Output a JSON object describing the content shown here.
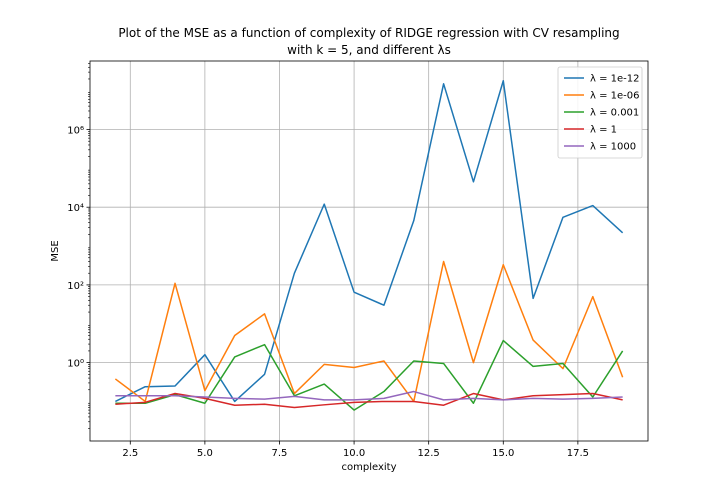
{
  "chart_data": {
    "type": "line",
    "title": "Plot of the MSE as a function of complexity of RIDGE regression with CV resampling",
    "subtitle": "with k = 5, and different λs",
    "xlabel": "complexity",
    "ylabel": "MSE",
    "xlim": [
      1.15,
      19.85
    ],
    "ylim": [
      0.0096,
      58000000
    ],
    "yscale": "log",
    "grid": true,
    "legend_position": "top-right",
    "x": [
      2,
      3,
      4,
      5,
      6,
      7,
      8,
      9,
      10,
      11,
      12,
      13,
      14,
      15,
      16,
      17,
      18,
      19
    ],
    "x_ticks": [
      2.5,
      5.0,
      7.5,
      10.0,
      12.5,
      15.0,
      17.5
    ],
    "x_tick_labels": [
      "2.5",
      "5.0",
      "7.5",
      "10.0",
      "12.5",
      "15.0",
      "17.5"
    ],
    "y_ticks": [
      1,
      100,
      10000,
      1000000
    ],
    "y_tick_labels": [
      "10⁰",
      "10²",
      "10⁴",
      "10⁶"
    ],
    "series": [
      {
        "name": "λ = 1e-12",
        "color": "#1f77b4",
        "values": [
          0.1,
          0.24,
          0.25,
          1.6,
          0.1,
          0.5,
          200,
          12000,
          65,
          30,
          4500,
          15000000,
          45000,
          18000000,
          45,
          5500,
          11000,
          2200
        ]
      },
      {
        "name": "λ = 1e-06",
        "color": "#ff7f0e",
        "values": [
          0.38,
          0.1,
          110,
          0.19,
          5,
          18,
          0.16,
          0.9,
          0.75,
          1.1,
          0.1,
          400,
          1.0,
          330,
          3.8,
          0.7,
          50,
          0.42
        ]
      },
      {
        "name": "λ = 0.001",
        "color": "#2ca02c",
        "values": [
          0.09,
          0.09,
          0.15,
          0.09,
          1.4,
          2.9,
          0.14,
          0.28,
          0.06,
          0.18,
          1.1,
          0.95,
          0.09,
          3.7,
          0.8,
          0.95,
          0.13,
          2.0
        ]
      },
      {
        "name": "λ = 1",
        "color": "#d62728",
        "values": [
          0.085,
          0.095,
          0.16,
          0.12,
          0.08,
          0.085,
          0.07,
          0.082,
          0.095,
          0.1,
          0.1,
          0.08,
          0.16,
          0.11,
          0.14,
          0.15,
          0.16,
          0.11
        ]
      },
      {
        "name": "λ = 1000",
        "color": "#9467bd",
        "values": [
          0.14,
          0.14,
          0.14,
          0.13,
          0.12,
          0.115,
          0.135,
          0.11,
          0.11,
          0.12,
          0.18,
          0.11,
          0.12,
          0.11,
          0.12,
          0.115,
          0.12,
          0.13
        ]
      }
    ]
  }
}
